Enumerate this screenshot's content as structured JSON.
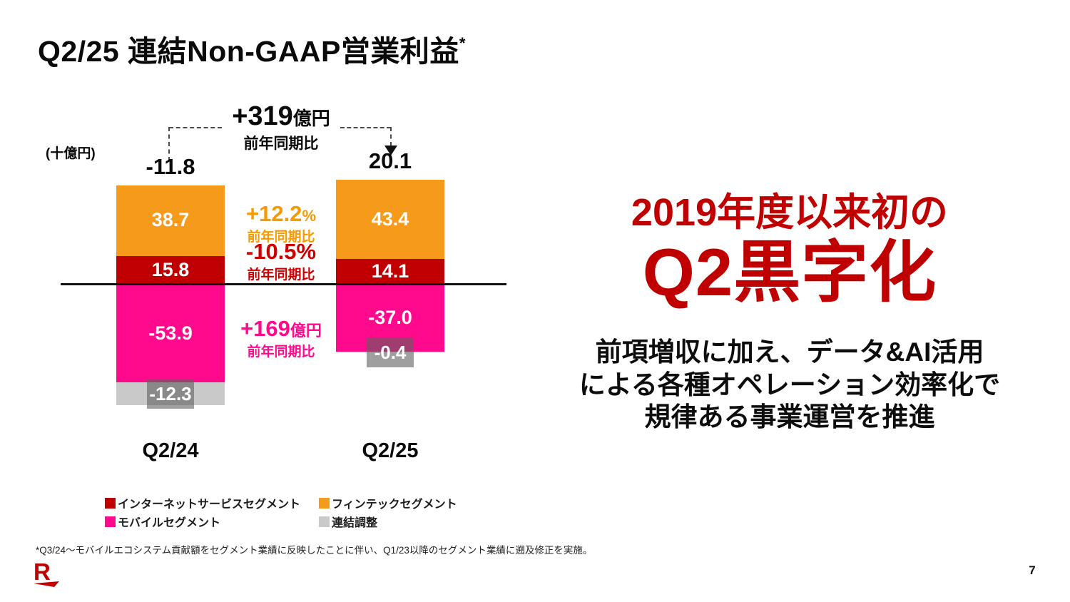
{
  "slide": {
    "title": "Q2/25 連結Non-GAAP営業利益",
    "title_note_marker": "*",
    "footnote": "*Q3/24～モバイルエコシステム貢献額をセグメント業績に反映したことに伴い、Q1/23以降のセグメント業績に遡及修正を実施。",
    "page_number": "7",
    "logo_letter": "R",
    "logo_color": "#BF0000"
  },
  "chart_data": {
    "type": "bar",
    "stacked": true,
    "unit_label": "(十億円)",
    "categories": [
      "Q2/24",
      "Q2/25"
    ],
    "totals": [
      -11.8,
      20.1
    ],
    "series": [
      {
        "key": "fintech",
        "name": "フィンテックセグメント",
        "color": "#F59A1B",
        "values": [
          38.7,
          43.4
        ],
        "label_style": "inside"
      },
      {
        "key": "internet-services",
        "name": "インターネットサービスセグメント",
        "color": "#C00000",
        "values": [
          15.8,
          14.1
        ],
        "label_style": "inside"
      },
      {
        "key": "mobile",
        "name": "モバイルセグメント",
        "color": "#FF0A8C",
        "values": [
          -53.9,
          -37.0
        ],
        "label_style": "inside"
      },
      {
        "key": "adjustment",
        "name": "連結調整",
        "color": "#C9C9C9",
        "values": [
          -12.3,
          -0.4
        ],
        "label_style": "overlay"
      }
    ],
    "annotations": {
      "total_change": {
        "value": "+319",
        "unit": "億円",
        "caption": "前年同期比",
        "color": "#0a0a0a"
      },
      "fintech_change": {
        "value": "+12.2",
        "unit": "%",
        "caption": "前年同期比",
        "color": "#F59A00"
      },
      "internet_change": {
        "value": "-10.5%",
        "unit": "",
        "caption": "前年同期比",
        "color": "#CC0000"
      },
      "mobile_change": {
        "value": "+169",
        "unit": "億円",
        "caption": "前年同期比",
        "color": "#FF0A8C"
      }
    }
  },
  "legend": {
    "items": [
      {
        "label": "インターネットサービスセグメント",
        "color": "#C00000"
      },
      {
        "label": "フィンテックセグメント",
        "color": "#F59A1B"
      },
      {
        "label": "モバイルセグメント",
        "color": "#FF0A8C"
      },
      {
        "label": "連結調整",
        "color": "#C9C9C9"
      }
    ]
  },
  "message": {
    "headline_line1": "2019年度以来初の",
    "headline_line2": "Q2黒字化",
    "headline_color": "#C00000",
    "body_lines": [
      "前項増収に加え、データ&AI活用",
      "による各種オペレーション効率化で",
      "規律ある事業運営を推進"
    ]
  }
}
